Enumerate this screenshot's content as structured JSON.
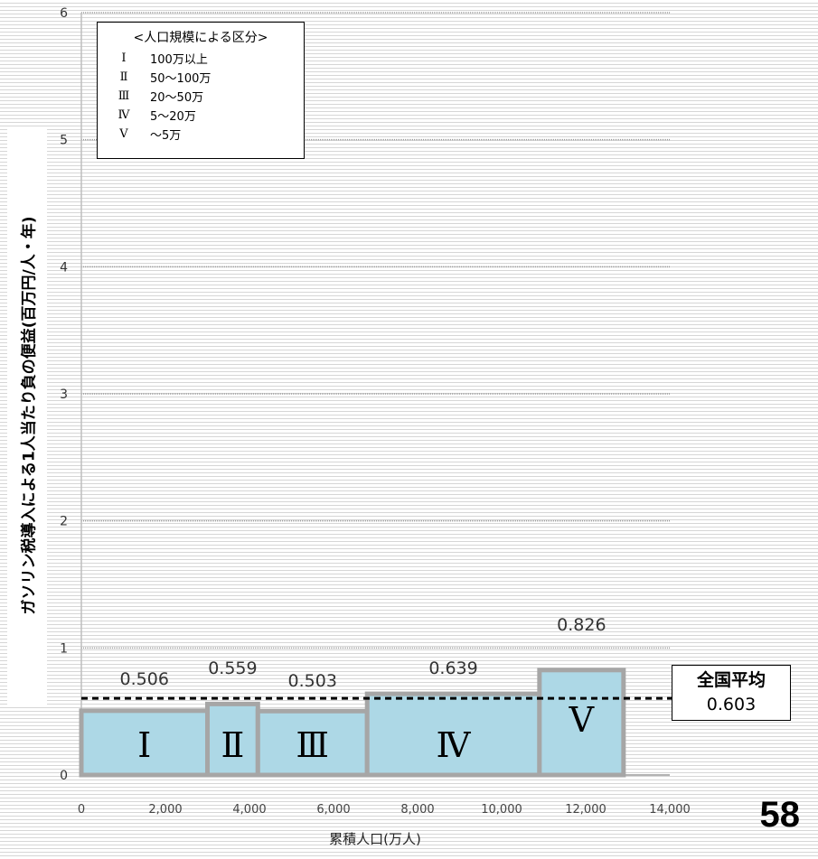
{
  "chart_data": {
    "type": "bar",
    "variable_width": true,
    "ylabel": "ガソリン税導入による1人当たり負の便益(百万円/人・年)",
    "xlabel": "累積人口(万人)",
    "ylim": [
      0,
      6
    ],
    "yticks": [
      "0",
      "1",
      "2",
      "3",
      "4",
      "5",
      "6"
    ],
    "xlim": [
      0,
      14000
    ],
    "xticks": [
      "0",
      "2,000",
      "4,000",
      "6,000",
      "8,000",
      "10,000",
      "12,000",
      "14,000"
    ],
    "grid": true,
    "bars": [
      {
        "category": "Ⅰ",
        "x_start": 0,
        "x_end": 3000,
        "value": 0.506,
        "value_label": "0.506"
      },
      {
        "category": "Ⅱ",
        "x_start": 3000,
        "x_end": 4200,
        "value": 0.559,
        "value_label": "0.559"
      },
      {
        "category": "Ⅲ",
        "x_start": 4200,
        "x_end": 6800,
        "value": 0.503,
        "value_label": "0.503"
      },
      {
        "category": "Ⅳ",
        "x_start": 6800,
        "x_end": 10900,
        "value": 0.639,
        "value_label": "0.639"
      },
      {
        "category": "Ⅴ",
        "x_start": 10900,
        "x_end": 12900,
        "value": 0.826,
        "value_label": "0.826"
      }
    ],
    "average": {
      "label": "全国平均",
      "value": 0.603,
      "value_label": "0.603"
    },
    "legend": {
      "title": "<人口規模による区分>",
      "placement": "top-left",
      "items": [
        {
          "roman": "Ⅰ",
          "range": "100万以上"
        },
        {
          "roman": "Ⅱ",
          "range": "50～100万"
        },
        {
          "roman": "Ⅲ",
          "range": "20～50万"
        },
        {
          "roman": "Ⅳ",
          "range": "5～20万"
        },
        {
          "roman": "Ⅴ",
          "range": "～5万"
        }
      ]
    },
    "colors": {
      "bar_fill": "#add8e6",
      "bar_stroke": "#a6a6a6",
      "average_line": "#000000"
    }
  },
  "page_number": "58"
}
